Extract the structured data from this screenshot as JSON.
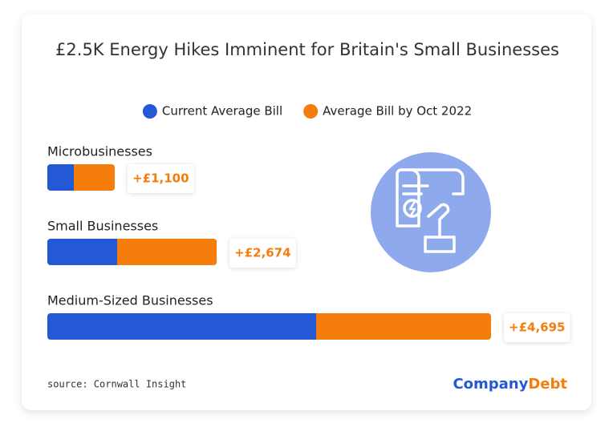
{
  "chart_data": {
    "type": "stacked-barh",
    "title": "£2.5K Energy Hikes Imminent for Britain's Small Businesses",
    "categories": [
      "Microbusinesses",
      "Small Businesses",
      "Medium-Sized Businesses"
    ],
    "series": [
      {
        "name": "Current Average Bill",
        "color": "#2459d6",
        "values": [
          711,
          1874,
          7215
        ]
      },
      {
        "name": "Average Bill by Oct 2022",
        "color": "#f47d0c",
        "values": [
          1100,
          2674,
          4695
        ],
        "value_labels": [
          "+£1,100",
          "+£2,674",
          "+£4,695"
        ]
      }
    ],
    "source": "source: Cornwall Insight",
    "brand": [
      "Company",
      "Debt"
    ]
  }
}
